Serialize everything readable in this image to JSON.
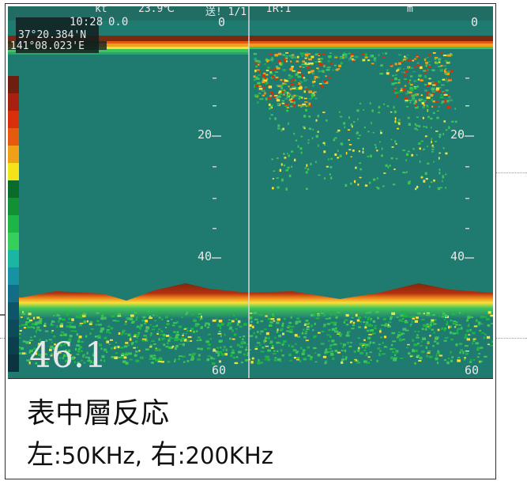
{
  "header": {
    "speed_unit": "kt",
    "temperature": "23.9℃",
    "send": "送! 1/1",
    "ir": "IR:1",
    "depth_unit": "m"
  },
  "overlay": {
    "time": "10:28",
    "time_suffix": "0.0",
    "lat": "37°20.384'N",
    "lon": "141°08.023'E",
    "depth_reading": "46.1"
  },
  "scale": {
    "left": [
      "0",
      "20",
      "40",
      "60"
    ],
    "right": [
      "0",
      "20",
      "40",
      "60"
    ]
  },
  "colorbar": [
    "#6f1f10",
    "#a8200f",
    "#d8300d",
    "#e55a0e",
    "#f0a018",
    "#f4e21a",
    "#0b6b2a",
    "#138f34",
    "#1db545",
    "#36cf5c",
    "#1bb6a2",
    "#1592a4",
    "#126e86",
    "#0f556a",
    "#0d4a5a",
    "#0c3f4d",
    "#0b3440"
  ],
  "caption": {
    "line1": "表中層反応",
    "left_label": "左",
    "left_value": "50KHz",
    "sep": ",",
    "right_label": "右",
    "right_value": "200KHz",
    "colon": ":"
  }
}
